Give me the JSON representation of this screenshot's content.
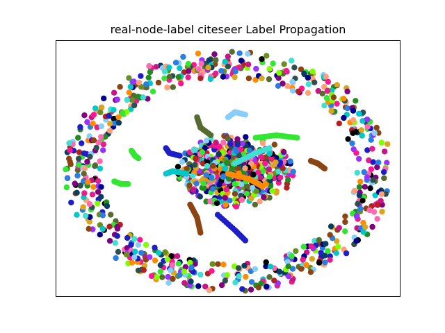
{
  "chart_data": {
    "type": "scatter",
    "title": "real-node-label citeseer Label Propagation",
    "xlabel": "",
    "ylabel": "",
    "axis_ticks": "none",
    "grid": false,
    "legend": "none",
    "xlim": [
      0,
      1
    ],
    "ylim": [
      0,
      1
    ],
    "palette": [
      "#2a7de1",
      "#32e632",
      "#e61e8c",
      "#8b4513",
      "#1e1ec8",
      "#00c8c8",
      "#6b8e23",
      "#9b30ff",
      "#ff8c00",
      "#0a3d62",
      "#b22222",
      "#7fff00",
      "#ff69b4",
      "#40e0d0",
      "#556b2f",
      "#800080",
      "#daa520",
      "#00008b",
      "#c71585",
      "#87cefa",
      "#2f4f4f",
      "#ffa07a",
      "#228b22",
      "#ff1493",
      "#000000"
    ],
    "dense_clusters": [
      {
        "cx": 0.52,
        "cy": 0.49,
        "rx": 0.17,
        "ry": 0.14,
        "count": 520,
        "seed": 11
      },
      {
        "cx": 0.51,
        "cy": 0.5,
        "rx": 0.08,
        "ry": 0.07,
        "count": 260,
        "seed": 23
      }
    ],
    "ring_bands": [
      {
        "cx": 0.5,
        "cy": 0.49,
        "rx_in": 0.74,
        "rx_out": 0.95,
        "ry_in": 0.72,
        "ry_out": 0.94,
        "count": 700,
        "seed": 37
      }
    ],
    "trails": [
      {
        "points": [
          [
            0.39,
            0.36
          ],
          [
            0.41,
            0.31
          ],
          [
            0.42,
            0.25
          ]
        ],
        "color_index": 3
      },
      {
        "points": [
          [
            0.47,
            0.32
          ],
          [
            0.52,
            0.26
          ],
          [
            0.55,
            0.22
          ]
        ],
        "color_index": 4
      },
      {
        "points": [
          [
            0.38,
            0.48
          ],
          [
            0.34,
            0.49
          ],
          [
            0.32,
            0.48
          ]
        ],
        "color_index": 5
      },
      {
        "points": [
          [
            0.58,
            0.62
          ],
          [
            0.64,
            0.63
          ],
          [
            0.7,
            0.62
          ]
        ],
        "color_index": 1
      },
      {
        "points": [
          [
            0.45,
            0.63
          ],
          [
            0.42,
            0.66
          ],
          [
            0.41,
            0.7
          ]
        ],
        "color_index": 14
      },
      {
        "points": [
          [
            0.5,
            0.7
          ],
          [
            0.52,
            0.72
          ],
          [
            0.55,
            0.71
          ]
        ],
        "color_index": 19
      },
      {
        "points": [
          [
            0.36,
            0.55
          ],
          [
            0.33,
            0.56
          ],
          [
            0.32,
            0.58
          ]
        ],
        "color_index": 4
      },
      {
        "points": [
          [
            0.21,
            0.44
          ],
          [
            0.19,
            0.44
          ],
          [
            0.17,
            0.45
          ]
        ],
        "color_index": 1
      },
      {
        "points": [
          [
            0.24,
            0.54
          ],
          [
            0.23,
            0.55
          ],
          [
            0.22,
            0.57
          ]
        ],
        "color_index": 1
      },
      {
        "points": [
          [
            0.78,
            0.5
          ],
          [
            0.76,
            0.52
          ],
          [
            0.74,
            0.53
          ]
        ],
        "color_index": 3
      },
      {
        "points": [
          [
            0.52,
            0.52
          ],
          [
            0.58,
            0.56
          ],
          [
            0.62,
            0.58
          ]
        ],
        "color_index": 13
      },
      {
        "points": [
          [
            0.5,
            0.48
          ],
          [
            0.56,
            0.46
          ],
          [
            0.6,
            0.43
          ]
        ],
        "color_index": 8
      }
    ]
  }
}
